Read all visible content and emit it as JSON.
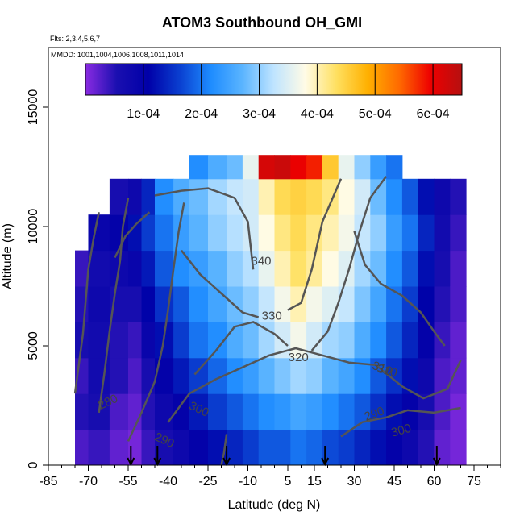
{
  "chart_data": {
    "type": "heatmap",
    "title": "ATOM3 Southbound OH_GMI",
    "subtitle_flights": "Flts: 2,3,4,5,6,7",
    "subtitle_dates": "MMDD: 1001,1004,1006,1008,1011,1014",
    "xlabel": "Latitude (deg N)",
    "ylabel": "Altitude (m)",
    "xlim": [
      -85,
      85
    ],
    "ylim": [
      0,
      17500
    ],
    "x_ticks": [
      -85,
      -70,
      -55,
      -40,
      -25,
      -10,
      5,
      15,
      30,
      45,
      60,
      75
    ],
    "y_ticks": [
      0,
      5000,
      10000,
      15000
    ],
    "colorbar": {
      "range": [
        0,
        0.00065
      ],
      "ticks": [
        0.0001,
        0.0002,
        0.0003,
        0.0004,
        0.0005,
        0.0006
      ],
      "tick_labels": [
        "1e-04",
        "2e-04",
        "3e-04",
        "4e-04",
        "5e-04",
        "6e-04"
      ],
      "colors": [
        "#8a2be2",
        "#1a0fb0",
        "#0000a8",
        "#0a3fd0",
        "#1e8cff",
        "#5ab4ff",
        "#bfe4ff",
        "#fffbe6",
        "#ffe060",
        "#ffb000",
        "#ff6a00",
        "#ee0000",
        "#b51010"
      ]
    },
    "theta_contour_labels": [
      "280",
      "290",
      "300",
      "310",
      "320",
      "330",
      "340",
      "290",
      "300",
      "310"
    ],
    "flight_markers_lat": [
      -54,
      -44,
      -18,
      19,
      61
    ],
    "oh_profile": {
      "description_cells": "latitude bands (deg N) with OH values by altitude band",
      "lat_bands": [
        [
          -75,
          -70
        ],
        [
          -70,
          -62
        ],
        [
          -62,
          -55
        ],
        [
          -55,
          -50
        ],
        [
          -50,
          -45
        ],
        [
          -45,
          -38
        ],
        [
          -38,
          -32
        ],
        [
          -32,
          -25
        ],
        [
          -25,
          -18
        ],
        [
          -18,
          -12
        ],
        [
          -12,
          -6
        ],
        [
          -6,
          0
        ],
        [
          0,
          6
        ],
        [
          6,
          12
        ],
        [
          12,
          18
        ],
        [
          18,
          24
        ],
        [
          24,
          30
        ],
        [
          30,
          36
        ],
        [
          36,
          42
        ],
        [
          42,
          48
        ],
        [
          48,
          54
        ],
        [
          54,
          60
        ],
        [
          60,
          66
        ],
        [
          66,
          72
        ]
      ],
      "alt_bands_m": [
        [
          0,
          1500
        ],
        [
          1500,
          3000
        ],
        [
          3000,
          4500
        ],
        [
          4500,
          6000
        ],
        [
          6000,
          7500
        ],
        [
          7500,
          9000
        ],
        [
          9000,
          10500
        ],
        [
          10500,
          12000
        ],
        [
          12000,
          13000
        ]
      ],
      "values": [
        [
          3e-05,
          5e-05,
          4e-05,
          6e-05,
          5e-05,
          4e-05,
          null,
          null,
          null
        ],
        [
          4e-05,
          6e-05,
          7e-05,
          7e-05,
          8e-05,
          7e-05,
          9e-05,
          null,
          null
        ],
        [
          2e-05,
          3e-05,
          5e-05,
          5e-05,
          6e-05,
          8e-05,
          0.0001,
          6e-05,
          null
        ],
        [
          1e-05,
          2e-05,
          3e-05,
          4e-05,
          6e-05,
          9e-05,
          0.00012,
          8e-05,
          null
        ],
        [
          4e-05,
          5e-05,
          6e-05,
          9e-05,
          0.00011,
          0.00013,
          0.00016,
          0.00014,
          null
        ],
        [
          6e-05,
          8e-05,
          0.0001,
          0.00012,
          0.00015,
          0.00018,
          0.0002,
          0.00022,
          null
        ],
        [
          8e-05,
          0.0001,
          0.00013,
          0.00016,
          0.00018,
          0.00022,
          0.00024,
          0.00026,
          null
        ],
        [
          0.0001,
          0.00013,
          0.00016,
          0.0002,
          0.00022,
          0.00024,
          0.00027,
          0.00028,
          0.00022
        ],
        [
          0.00012,
          0.00016,
          0.00019,
          0.00022,
          0.00025,
          0.00027,
          0.0003,
          0.00031,
          0.00026
        ],
        [
          0.00014,
          0.00018,
          0.00022,
          0.00026,
          0.00028,
          0.0003,
          0.00032,
          0.00033,
          0.00028
        ],
        [
          0.00016,
          0.0002,
          0.00024,
          0.00028,
          0.0003,
          0.00032,
          0.00034,
          0.00034,
          0.00036
        ],
        [
          0.00018,
          0.00022,
          0.00027,
          0.00031,
          0.00033,
          0.00036,
          0.00038,
          0.0004,
          0.00062
        ],
        [
          0.00018,
          0.00023,
          0.00029,
          0.00034,
          0.00037,
          0.0004,
          0.00042,
          0.00044,
          0.00063
        ],
        [
          0.0002,
          0.00025,
          0.00031,
          0.00037,
          0.0004,
          0.00043,
          0.00044,
          0.00045,
          0.0006
        ],
        [
          0.00019,
          0.00024,
          0.0003,
          0.00034,
          0.00037,
          0.00041,
          0.00042,
          0.00044,
          0.00058
        ],
        [
          0.00017,
          0.00022,
          0.00027,
          0.00031,
          0.00035,
          0.00038,
          0.0004,
          0.00042,
          0.00046
        ],
        [
          0.00016,
          0.0002,
          0.00025,
          0.0003,
          0.00033,
          0.00035,
          0.00037,
          0.00038,
          0.00036
        ],
        [
          0.00014,
          0.00018,
          0.00022,
          0.00026,
          0.00029,
          0.00031,
          0.00033,
          0.00034,
          0.0003
        ],
        [
          0.00012,
          0.00015,
          0.00018,
          0.00022,
          0.00025,
          0.00028,
          0.0003,
          0.00028,
          0.00024
        ],
        [
          0.0001,
          0.00012,
          0.00015,
          0.00018,
          0.0002,
          0.00022,
          0.00024,
          0.00022,
          0.0002
        ],
        [
          8e-05,
          0.0001,
          0.00012,
          0.00014,
          0.00016,
          0.00018,
          0.0002,
          0.00018,
          null
        ],
        [
          5e-05,
          6e-05,
          8e-05,
          0.0001,
          0.00011,
          0.00012,
          0.00014,
          0.00012,
          null
        ],
        [
          2e-05,
          3e-05,
          3e-05,
          4e-05,
          5e-05,
          6e-05,
          7e-05,
          8e-05,
          null
        ],
        [
          1e-05,
          1e-05,
          2e-05,
          2e-05,
          3e-05,
          3e-05,
          4e-05,
          5e-05,
          null
        ]
      ]
    }
  }
}
